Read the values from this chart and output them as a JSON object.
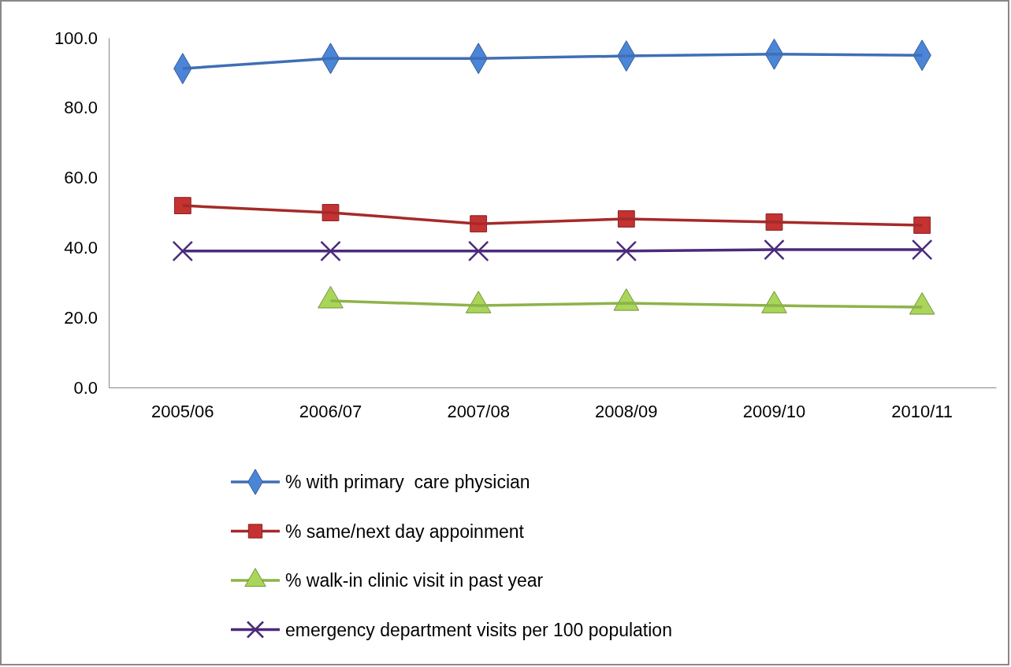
{
  "chart_data": {
    "type": "line",
    "categories": [
      "2005/06",
      "2006/07",
      "2007/08",
      "2008/09",
      "2009/10",
      "2010/11"
    ],
    "series": [
      {
        "name": "% with primary  care physician",
        "color": "#3f6fb5",
        "marker": "diamond",
        "values": [
          91.2,
          94.1,
          94.1,
          94.8,
          95.3,
          95.0
        ]
      },
      {
        "name": "% same/next day appoinment",
        "color": "#a52a2a",
        "marker": "square",
        "values": [
          52.0,
          50.0,
          46.8,
          48.2,
          47.3,
          46.4
        ]
      },
      {
        "name": "% walk-in clinic visit in past year",
        "color": "#8db34a",
        "marker": "triangle",
        "values": [
          null,
          24.8,
          23.4,
          24.1,
          23.4,
          23.0
        ]
      },
      {
        "name": "emergency department visits per 100 population",
        "color": "#4b2a7b",
        "marker": "cross",
        "values": [
          39.0,
          39.0,
          39.0,
          39.0,
          39.4,
          39.4
        ]
      }
    ],
    "ylim": [
      0,
      100
    ],
    "yticks": [
      {
        "value": 0,
        "label": "0.0"
      },
      {
        "value": 20,
        "label": "20.0"
      },
      {
        "value": 40,
        "label": "40.0"
      },
      {
        "value": 60,
        "label": "60.0"
      },
      {
        "value": 80,
        "label": "80.0"
      },
      {
        "value": 100,
        "label": "100.0"
      }
    ],
    "grid": false,
    "legend": "bottom"
  }
}
